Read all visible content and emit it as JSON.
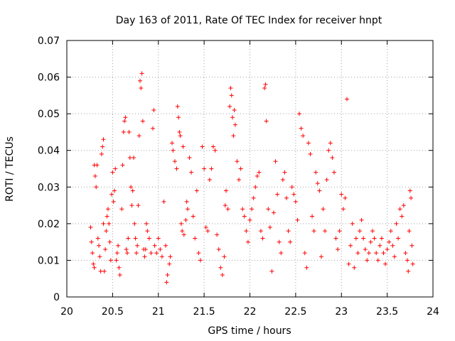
{
  "chart_data": {
    "type": "scatter",
    "title": "Day 163 of 2011, Rate Of TEC Index for receiver hnpt",
    "xlabel": "GPS time / hours",
    "ylabel": "ROTI / TECUs",
    "xlim": [
      20,
      24
    ],
    "ylim": [
      0,
      0.07
    ],
    "xticks": [
      20,
      20.5,
      21,
      21.5,
      22,
      22.5,
      23,
      23.5,
      24
    ],
    "xtick_labels": [
      "20",
      "20.5",
      "21",
      "21.5",
      "22",
      "22.5",
      "23",
      "23.5",
      "24"
    ],
    "yticks": [
      0,
      0.01,
      0.02,
      0.03,
      0.04,
      0.05,
      0.06,
      0.07
    ],
    "ytick_labels": [
      "0",
      "0.01",
      "0.02",
      "0.03",
      "0.04",
      "0.05",
      "0.06",
      "0.07"
    ],
    "grid": true,
    "marker": "+",
    "color": "#ff0000",
    "series": [
      {
        "name": "ROTI",
        "points": [
          [
            20.26,
            0.019
          ],
          [
            20.27,
            0.015
          ],
          [
            20.28,
            0.012
          ],
          [
            20.29,
            0.009
          ],
          [
            20.3,
            0.008
          ],
          [
            20.3,
            0.036
          ],
          [
            20.31,
            0.033
          ],
          [
            20.32,
            0.03
          ],
          [
            20.33,
            0.036
          ],
          [
            20.34,
            0.016
          ],
          [
            20.35,
            0.014
          ],
          [
            20.36,
            0.011
          ],
          [
            20.37,
            0.007
          ],
          [
            20.38,
            0.039
          ],
          [
            20.39,
            0.041
          ],
          [
            20.4,
            0.043
          ],
          [
            20.4,
            0.02
          ],
          [
            20.41,
            0.007
          ],
          [
            20.42,
            0.013
          ],
          [
            20.43,
            0.018
          ],
          [
            20.44,
            0.022
          ],
          [
            20.45,
            0.024
          ],
          [
            20.46,
            0.02
          ],
          [
            20.47,
            0.015
          ],
          [
            20.48,
            0.01
          ],
          [
            20.49,
            0.028
          ],
          [
            20.5,
            0.034
          ],
          [
            20.51,
            0.026
          ],
          [
            20.52,
            0.029
          ],
          [
            20.53,
            0.035
          ],
          [
            20.54,
            0.01
          ],
          [
            20.55,
            0.012
          ],
          [
            20.56,
            0.014
          ],
          [
            20.57,
            0.008
          ],
          [
            20.58,
            0.006
          ],
          [
            20.6,
            0.024
          ],
          [
            20.61,
            0.036
          ],
          [
            20.62,
            0.045
          ],
          [
            20.63,
            0.048
          ],
          [
            20.64,
            0.049
          ],
          [
            20.65,
            0.013
          ],
          [
            20.66,
            0.012
          ],
          [
            20.67,
            0.016
          ],
          [
            20.68,
            0.045
          ],
          [
            20.69,
            0.038
          ],
          [
            20.7,
            0.03
          ],
          [
            20.71,
            0.025
          ],
          [
            20.72,
            0.029
          ],
          [
            20.73,
            0.038
          ],
          [
            20.74,
            0.02
          ],
          [
            20.75,
            0.016
          ],
          [
            20.76,
            0.012
          ],
          [
            20.77,
            0.014
          ],
          [
            20.78,
            0.025
          ],
          [
            20.79,
            0.044
          ],
          [
            20.8,
            0.059
          ],
          [
            20.81,
            0.057
          ],
          [
            20.82,
            0.061
          ],
          [
            20.83,
            0.048
          ],
          [
            20.84,
            0.013
          ],
          [
            20.85,
            0.011
          ],
          [
            20.86,
            0.013
          ],
          [
            20.87,
            0.02
          ],
          [
            20.88,
            0.018
          ],
          [
            20.9,
            0.016
          ],
          [
            20.92,
            0.012
          ],
          [
            20.94,
            0.046
          ],
          [
            20.95,
            0.051
          ],
          [
            20.96,
            0.014
          ],
          [
            20.98,
            0.012
          ],
          [
            21.0,
            0.016
          ],
          [
            21.02,
            0.013
          ],
          [
            21.04,
            0.011
          ],
          [
            21.06,
            0.026
          ],
          [
            21.08,
            0.014
          ],
          [
            21.09,
            0.004
          ],
          [
            21.1,
            0.006
          ],
          [
            21.12,
            0.009
          ],
          [
            21.13,
            0.011
          ],
          [
            21.15,
            0.042
          ],
          [
            21.16,
            0.04
          ],
          [
            21.18,
            0.037
          ],
          [
            21.2,
            0.035
          ],
          [
            21.21,
            0.052
          ],
          [
            21.22,
            0.049
          ],
          [
            21.23,
            0.045
          ],
          [
            21.24,
            0.044
          ],
          [
            21.25,
            0.02
          ],
          [
            21.26,
            0.018
          ],
          [
            21.27,
            0.041
          ],
          [
            21.28,
            0.017
          ],
          [
            21.3,
            0.021
          ],
          [
            21.31,
            0.026
          ],
          [
            21.32,
            0.024
          ],
          [
            21.34,
            0.038
          ],
          [
            21.36,
            0.034
          ],
          [
            21.38,
            0.022
          ],
          [
            21.4,
            0.016
          ],
          [
            21.42,
            0.029
          ],
          [
            21.44,
            0.012
          ],
          [
            21.46,
            0.01
          ],
          [
            21.48,
            0.041
          ],
          [
            21.5,
            0.035
          ],
          [
            21.52,
            0.019
          ],
          [
            21.54,
            0.018
          ],
          [
            21.56,
            0.032
          ],
          [
            21.58,
            0.035
          ],
          [
            21.6,
            0.041
          ],
          [
            21.62,
            0.04
          ],
          [
            21.64,
            0.017
          ],
          [
            21.66,
            0.013
          ],
          [
            21.68,
            0.008
          ],
          [
            21.7,
            0.006
          ],
          [
            21.72,
            0.011
          ],
          [
            21.73,
            0.025
          ],
          [
            21.74,
            0.029
          ],
          [
            21.76,
            0.024
          ],
          [
            21.78,
            0.052
          ],
          [
            21.79,
            0.057
          ],
          [
            21.8,
            0.055
          ],
          [
            21.81,
            0.049
          ],
          [
            21.82,
            0.044
          ],
          [
            21.83,
            0.051
          ],
          [
            21.84,
            0.047
          ],
          [
            21.86,
            0.037
          ],
          [
            21.88,
            0.032
          ],
          [
            21.9,
            0.035
          ],
          [
            21.92,
            0.024
          ],
          [
            21.94,
            0.022
          ],
          [
            21.96,
            0.018
          ],
          [
            21.98,
            0.015
          ],
          [
            22.0,
            0.021
          ],
          [
            22.02,
            0.024
          ],
          [
            22.04,
            0.027
          ],
          [
            22.06,
            0.03
          ],
          [
            22.08,
            0.033
          ],
          [
            22.1,
            0.034
          ],
          [
            22.12,
            0.018
          ],
          [
            22.14,
            0.016
          ],
          [
            22.16,
            0.057
          ],
          [
            22.17,
            0.058
          ],
          [
            22.18,
            0.048
          ],
          [
            22.2,
            0.024
          ],
          [
            22.22,
            0.019
          ],
          [
            22.24,
            0.007
          ],
          [
            22.26,
            0.023
          ],
          [
            22.28,
            0.037
          ],
          [
            22.3,
            0.028
          ],
          [
            22.32,
            0.015
          ],
          [
            22.34,
            0.012
          ],
          [
            22.36,
            0.032
          ],
          [
            22.38,
            0.034
          ],
          [
            22.4,
            0.027
          ],
          [
            22.42,
            0.018
          ],
          [
            22.44,
            0.015
          ],
          [
            22.46,
            0.03
          ],
          [
            22.48,
            0.028
          ],
          [
            22.5,
            0.026
          ],
          [
            22.52,
            0.021
          ],
          [
            22.54,
            0.05
          ],
          [
            22.56,
            0.046
          ],
          [
            22.58,
            0.044
          ],
          [
            22.6,
            0.012
          ],
          [
            22.62,
            0.008
          ],
          [
            22.64,
            0.042
          ],
          [
            22.66,
            0.039
          ],
          [
            22.68,
            0.022
          ],
          [
            22.7,
            0.018
          ],
          [
            22.72,
            0.034
          ],
          [
            22.74,
            0.031
          ],
          [
            22.76,
            0.029
          ],
          [
            22.78,
            0.011
          ],
          [
            22.8,
            0.024
          ],
          [
            22.82,
            0.018
          ],
          [
            22.84,
            0.032
          ],
          [
            22.86,
            0.04
          ],
          [
            22.88,
            0.042
          ],
          [
            22.9,
            0.038
          ],
          [
            22.92,
            0.034
          ],
          [
            22.94,
            0.016
          ],
          [
            22.96,
            0.013
          ],
          [
            22.98,
            0.018
          ],
          [
            23.0,
            0.028
          ],
          [
            23.02,
            0.024
          ],
          [
            23.04,
            0.027
          ],
          [
            23.06,
            0.054
          ],
          [
            23.08,
            0.009
          ],
          [
            23.1,
            0.014
          ],
          [
            23.12,
            0.02
          ],
          [
            23.14,
            0.008
          ],
          [
            23.16,
            0.016
          ],
          [
            23.18,
            0.012
          ],
          [
            23.2,
            0.018
          ],
          [
            23.22,
            0.021
          ],
          [
            23.24,
            0.016
          ],
          [
            23.26,
            0.013
          ],
          [
            23.28,
            0.01
          ],
          [
            23.3,
            0.012
          ],
          [
            23.32,
            0.015
          ],
          [
            23.34,
            0.018
          ],
          [
            23.36,
            0.016
          ],
          [
            23.38,
            0.012
          ],
          [
            23.4,
            0.01
          ],
          [
            23.42,
            0.014
          ],
          [
            23.44,
            0.016
          ],
          [
            23.46,
            0.012
          ],
          [
            23.48,
            0.009
          ],
          [
            23.5,
            0.013
          ],
          [
            23.52,
            0.015
          ],
          [
            23.54,
            0.018
          ],
          [
            23.56,
            0.014
          ],
          [
            23.58,
            0.011
          ],
          [
            23.6,
            0.02
          ],
          [
            23.62,
            0.016
          ],
          [
            23.64,
            0.024
          ],
          [
            23.66,
            0.022
          ],
          [
            23.68,
            0.025
          ],
          [
            23.7,
            0.012
          ],
          [
            23.72,
            0.01
          ],
          [
            23.73,
            0.007
          ],
          [
            23.74,
            0.018
          ],
          [
            23.75,
            0.029
          ],
          [
            23.76,
            0.027
          ],
          [
            23.77,
            0.014
          ],
          [
            23.78,
            0.009
          ]
        ]
      }
    ]
  }
}
